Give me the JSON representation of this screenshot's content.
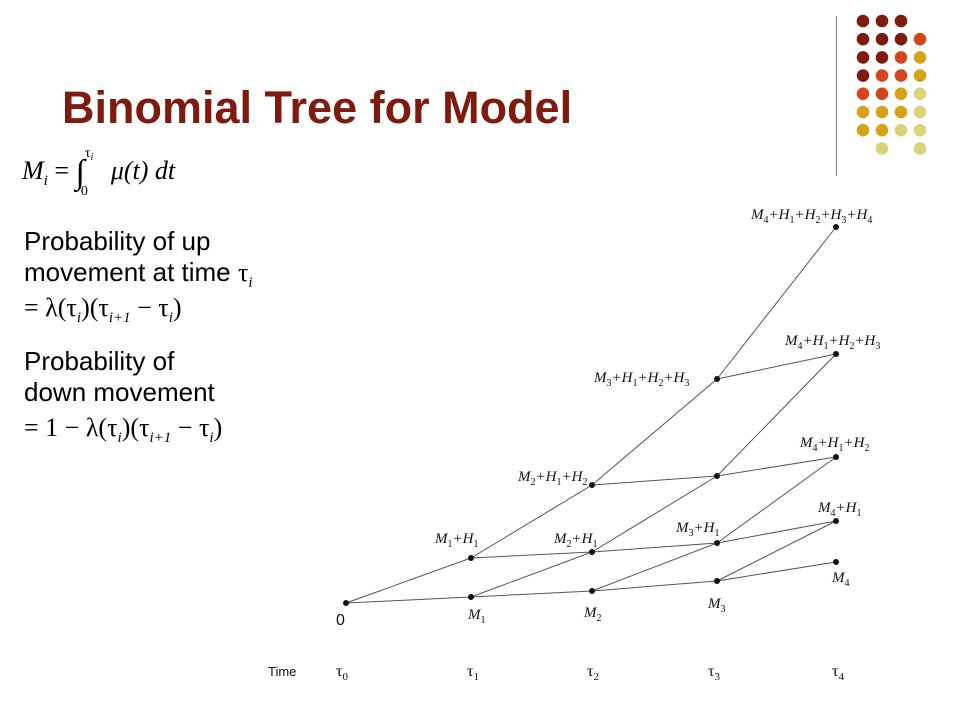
{
  "title": "Binomial Tree for Model",
  "accent_colors": {
    "dark_red": "#7f1a0f",
    "orange": "#d4471c",
    "gold": "#d5a21a",
    "khaki": "#d9d37a",
    "title": "#7f1a0f"
  },
  "formulas": {
    "m_def_lhs": "M",
    "m_def_sub": "i",
    "m_def_eq": "=",
    "m_def_integral": "∫",
    "m_def_upper": "τ",
    "m_def_upper_sub": "i",
    "m_def_lower": "0",
    "m_def_integrand": "μ(t) dt"
  },
  "up_probability": {
    "line1": "Probability of up",
    "line2_text": "movement at time ",
    "line2_tau": "τ",
    "line2_sub": "i",
    "line3_expr": "= λ(τ",
    "line3_rest": ")(τ",
    "line3_rest2": " − τ",
    "line3_end": ")",
    "sub_i": "i",
    "sub_i1": "i+1"
  },
  "down_probability": {
    "line1": "Probability of",
    "line2": "down movement",
    "line3_expr": "= 1 − λ(τ",
    "line3_rest": ")(τ",
    "line3_rest2": " − τ",
    "line3_end": ")",
    "sub_i": "i",
    "sub_i1": "i+1"
  },
  "tree": {
    "root_label": "0",
    "node_labels": {
      "M1": [
        "M",
        "1"
      ],
      "M2": [
        "M",
        "2"
      ],
      "M3": [
        "M",
        "3"
      ],
      "M4": [
        "M",
        "4"
      ],
      "M1H1": [
        "M",
        "1",
        "+H",
        "1"
      ],
      "M2H1": [
        "M",
        "2",
        "+H",
        "1"
      ],
      "M3H1": [
        "M",
        "3",
        "+H",
        "1"
      ],
      "M4H1": [
        "M",
        "4",
        "+H",
        "1"
      ],
      "M2H1H2": [
        "M",
        "2",
        "+H",
        "1",
        "+H",
        "2"
      ],
      "M4H1H2": [
        "M",
        "4",
        "+H",
        "1",
        "+H",
        "2"
      ],
      "M3H1H2H3": [
        "M",
        "3",
        "+H",
        "1",
        "+H",
        "2",
        "+H",
        "3"
      ],
      "M4H1H2H3": [
        "M",
        "4",
        "+H",
        "1",
        "+H",
        "2",
        "+H",
        "3"
      ],
      "M4H1H2H3H4": [
        "M",
        "4",
        "+H",
        "1",
        "+H",
        "2",
        "+H",
        "3",
        "+H",
        "4"
      ]
    },
    "time_label": "Time",
    "time_ticks": [
      [
        "τ",
        "0"
      ],
      [
        "τ",
        "1"
      ],
      [
        "τ",
        "2"
      ],
      [
        "τ",
        "3"
      ],
      [
        "τ",
        "4"
      ]
    ]
  }
}
